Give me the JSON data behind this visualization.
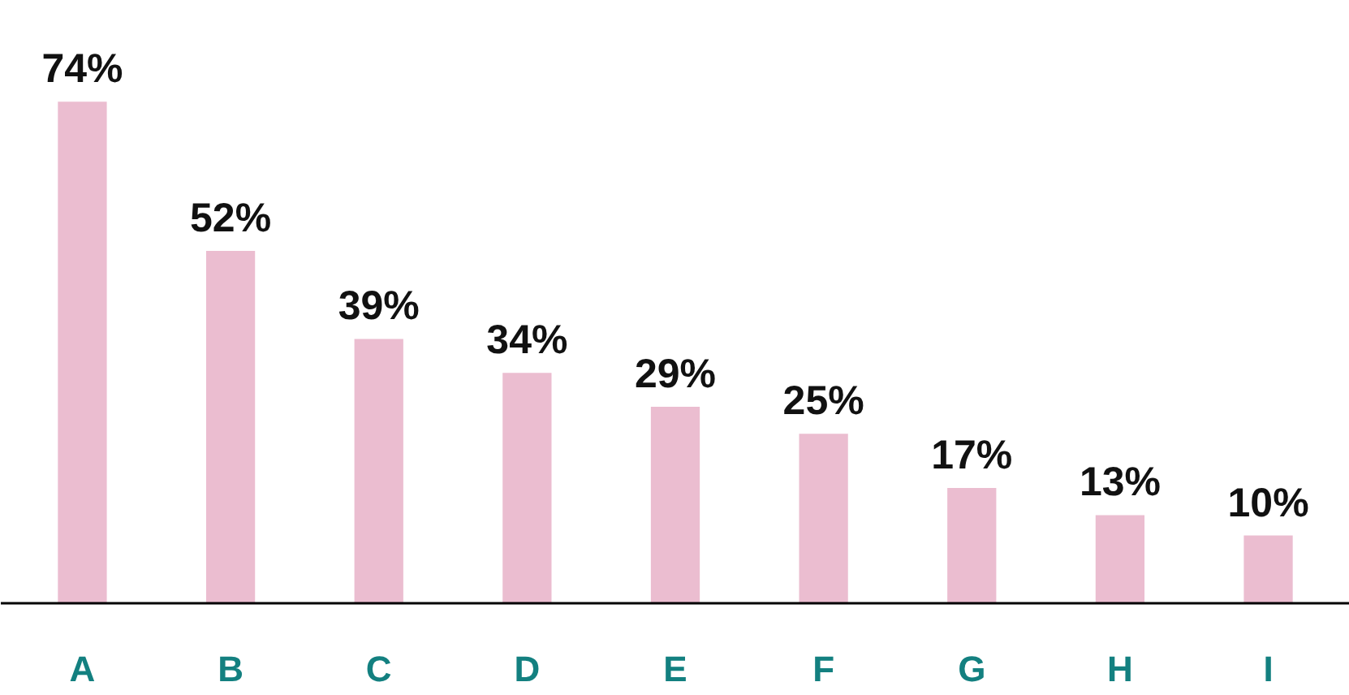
{
  "chart_data": {
    "type": "bar",
    "categories": [
      "A",
      "B",
      "C",
      "D",
      "E",
      "F",
      "G",
      "H",
      "I"
    ],
    "values": [
      74,
      52,
      39,
      34,
      29,
      25,
      17,
      13,
      10
    ],
    "value_labels": [
      "74%",
      "52%",
      "39%",
      "34%",
      "29%",
      "25%",
      "17%",
      "13%",
      "10%"
    ],
    "color": "#ebbdd0",
    "grid": false
  }
}
